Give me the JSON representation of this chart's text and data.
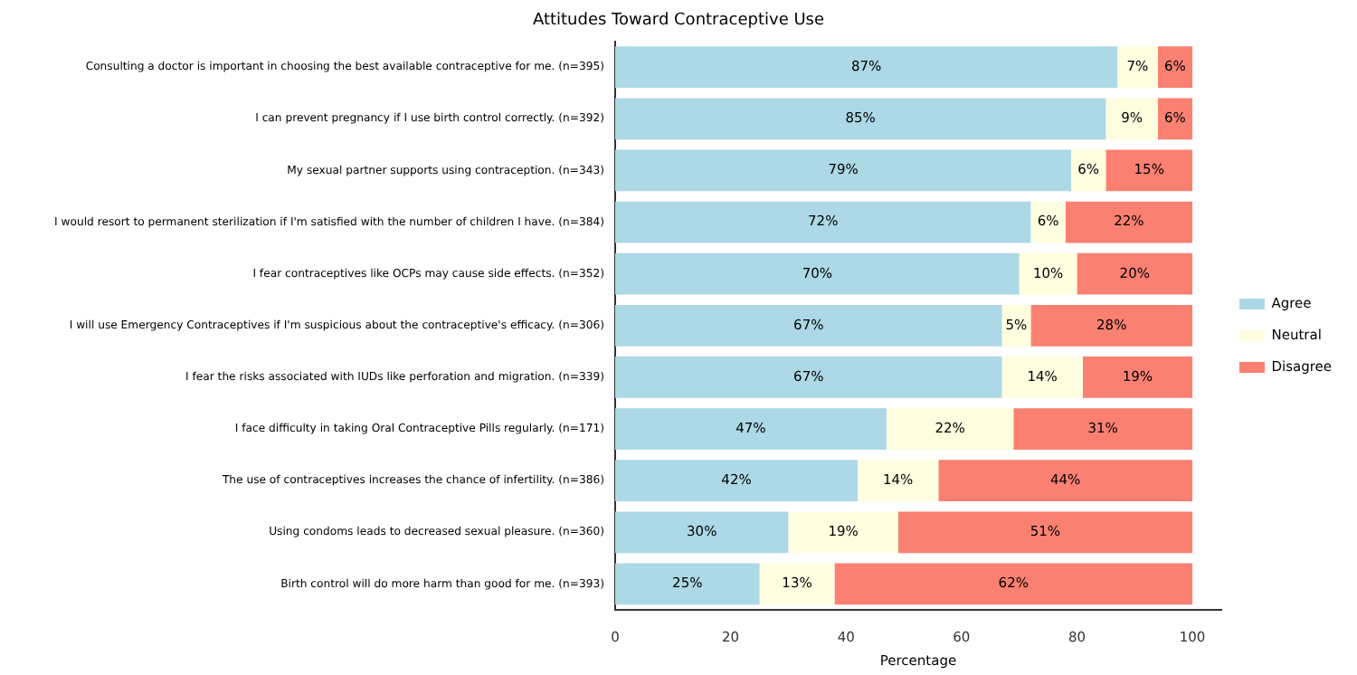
{
  "chart_data": {
    "type": "bar",
    "orientation": "horizontal",
    "stacked": true,
    "title": "Attitudes Toward Contraceptive Use",
    "xlabel": "Percentage",
    "categories": [
      "Consulting a doctor is important in choosing the best available contraceptive for me. (n=395)",
      "I can prevent pregnancy if I use birth control correctly. (n=392)",
      "My sexual partner supports using contraception. (n=343)",
      "I would resort to permanent sterilization if I'm satisfied with the number of children I have. (n=384)",
      "I fear contraceptives like OCPs may cause side effects. (n=352)",
      "I will use Emergency Contraceptives if I'm suspicious about the contraceptive's efficacy. (n=306)",
      "I fear the risks associated with IUDs like perforation and migration. (n=339)",
      "I face difficulty in taking Oral Contraceptive Pills regularly. (n=171)",
      "The use of contraceptives increases the chance of infertility. (n=386)",
      "Using condoms leads to decreased sexual pleasure. (n=360)",
      "Birth control will do more harm than good for me. (n=393)"
    ],
    "series": [
      {
        "name": "Agree",
        "color": "#add8e6",
        "values": [
          87,
          85,
          79,
          72,
          70,
          67,
          67,
          47,
          42,
          30,
          25
        ],
        "value_labels": [
          "87%",
          "85%",
          "79%",
          "72%",
          "70%",
          "67%",
          "67%",
          "47%",
          "42%",
          "30%",
          "25%"
        ]
      },
      {
        "name": "Neutral",
        "color": "#ffffe0",
        "values": [
          7,
          9,
          6,
          6,
          10,
          5,
          14,
          22,
          14,
          19,
          13
        ],
        "value_labels": [
          "7%",
          "9%",
          "6%",
          "6%",
          "10%",
          "5%",
          "14%",
          "22%",
          "14%",
          "19%",
          "13%"
        ]
      },
      {
        "name": "Disagree",
        "color": "#fa8072",
        "values": [
          6,
          6,
          15,
          22,
          20,
          28,
          19,
          31,
          44,
          51,
          62
        ],
        "value_labels": [
          "6%",
          "6%",
          "15%",
          "22%",
          "20%",
          "28%",
          "19%",
          "31%",
          "44%",
          "51%",
          "62%"
        ]
      }
    ],
    "xlim": [
      0,
      105
    ],
    "xticks": [
      0,
      20,
      40,
      60,
      80,
      100
    ],
    "grid": false,
    "legend": "right"
  }
}
